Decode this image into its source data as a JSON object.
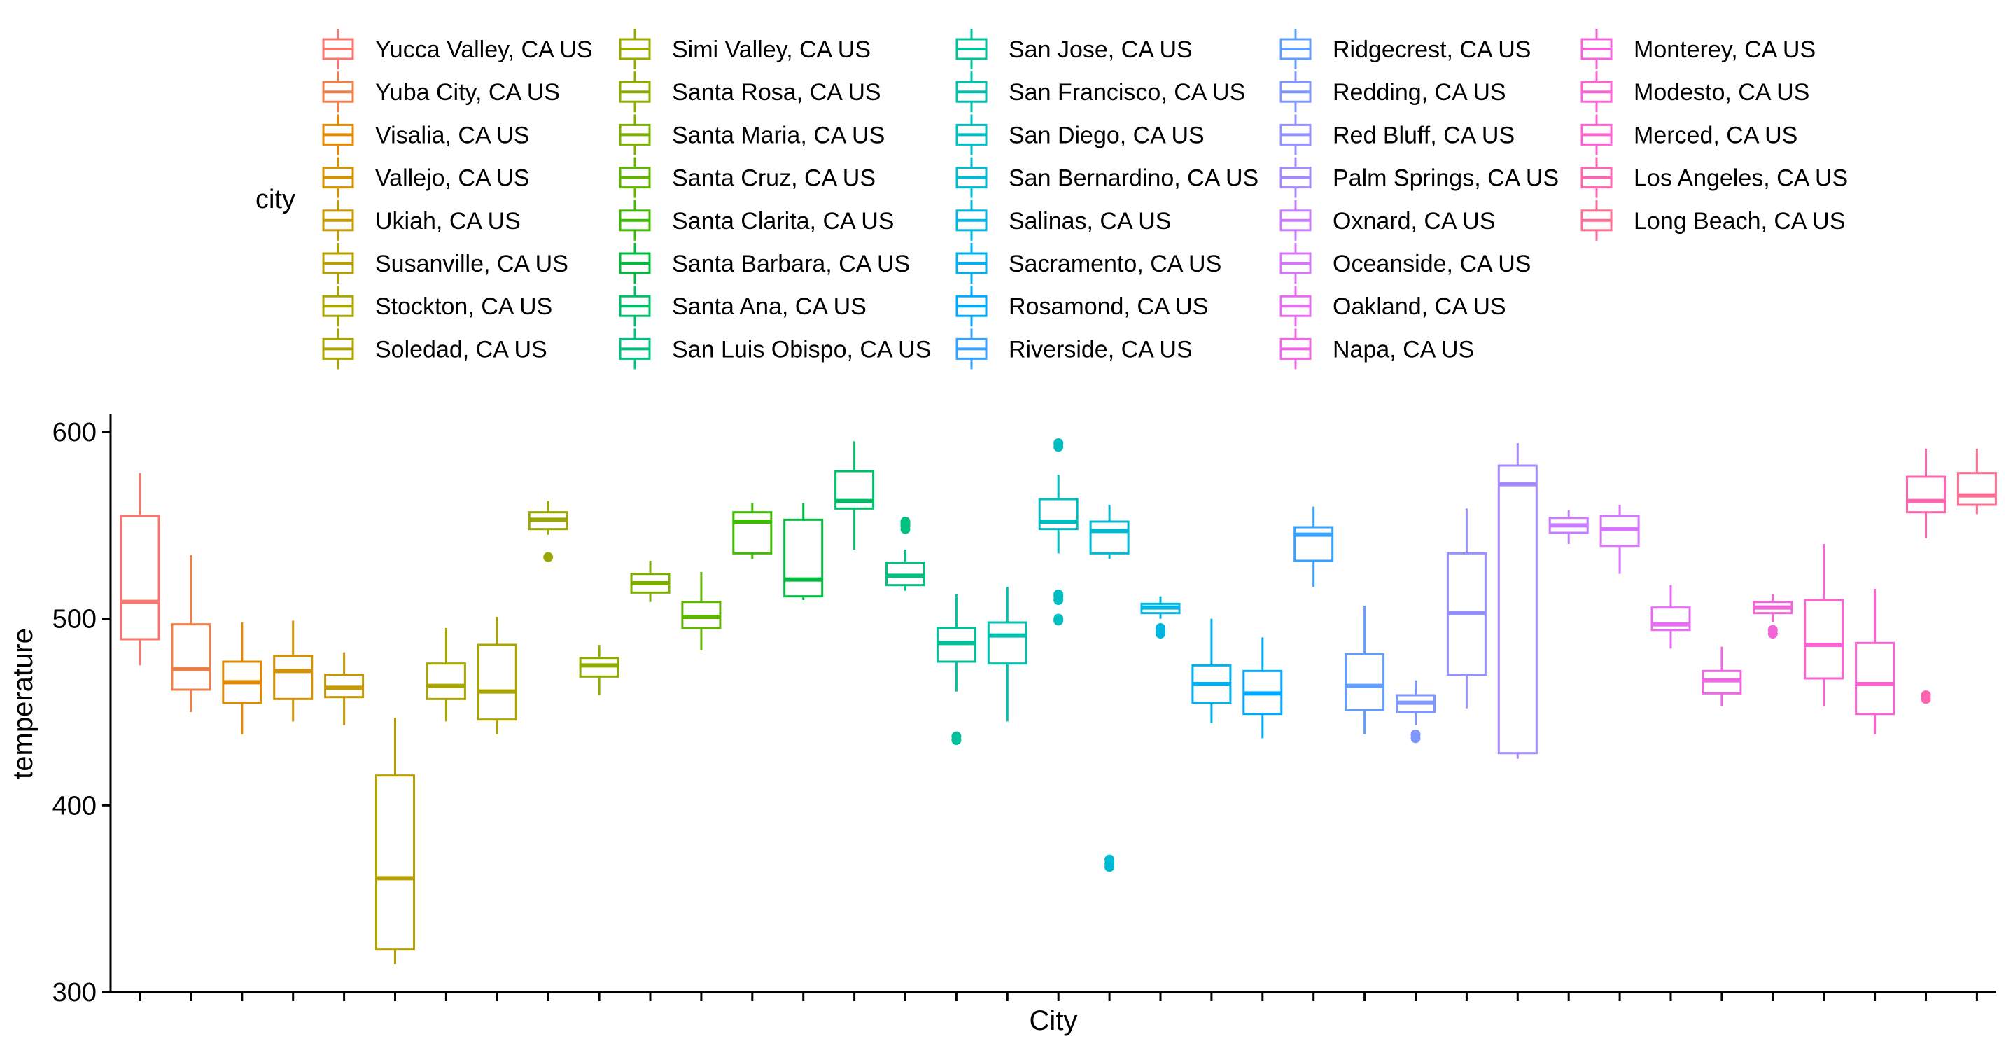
{
  "chart_data": {
    "type": "box",
    "xlabel": "City",
    "ylabel": "temperature",
    "ylim": [
      300,
      610
    ],
    "yticks": [
      300,
      400,
      500,
      600
    ],
    "legend_title": "city",
    "legend_position": "top",
    "grid": false,
    "series": [
      {
        "name": "Yucca Valley, CA US",
        "color": "#F8766D",
        "whisker_low": 475,
        "q1": 489,
        "median": 509,
        "q3": 555,
        "whisker_high": 578,
        "outliers": []
      },
      {
        "name": "Yuba City, CA US",
        "color": "#EF7F49",
        "whisker_low": 450,
        "q1": 462,
        "median": 473,
        "q3": 497,
        "whisker_high": 534,
        "outliers": []
      },
      {
        "name": "Visalia, CA US",
        "color": "#E38900",
        "whisker_low": 438,
        "q1": 455,
        "median": 466,
        "q3": 477,
        "whisker_high": 498,
        "outliers": []
      },
      {
        "name": "Vallejo, CA US",
        "color": "#D59100",
        "whisker_low": 445,
        "q1": 457,
        "median": 472,
        "q3": 480,
        "whisker_high": 499,
        "outliers": []
      },
      {
        "name": "Ukiah, CA US",
        "color": "#C59900",
        "whisker_low": 443,
        "q1": 458,
        "median": 463,
        "q3": 470,
        "whisker_high": 482,
        "outliers": []
      },
      {
        "name": "Susanville, CA US",
        "color": "#B79F00",
        "whisker_low": 315,
        "q1": 323,
        "median": 361,
        "q3": 416,
        "whisker_high": 447,
        "outliers": []
      },
      {
        "name": "Stockton, CA US",
        "color": "#A8A400",
        "whisker_low": 445,
        "q1": 457,
        "median": 464,
        "q3": 476,
        "whisker_high": 495,
        "outliers": []
      },
      {
        "name": "Soledad, CA US",
        "color": "#ABA300",
        "whisker_low": 438,
        "q1": 446,
        "median": 461,
        "q3": 486,
        "whisker_high": 501,
        "outliers": []
      },
      {
        "name": "Simi Valley, CA US",
        "color": "#9BA800",
        "whisker_low": 545,
        "q1": 548,
        "median": 553,
        "q3": 557,
        "whisker_high": 563,
        "outliers": [
          533
        ]
      },
      {
        "name": "Santa Rosa, CA US",
        "color": "#8BAD00",
        "whisker_low": 459,
        "q1": 469,
        "median": 475,
        "q3": 479,
        "whisker_high": 486,
        "outliers": []
      },
      {
        "name": "Santa Maria, CA US",
        "color": "#7CAE00",
        "whisker_low": 509,
        "q1": 514,
        "median": 519,
        "q3": 524,
        "whisker_high": 531,
        "outliers": []
      },
      {
        "name": "Santa Cruz, CA US",
        "color": "#5FB600",
        "whisker_low": 483,
        "q1": 495,
        "median": 501,
        "q3": 509,
        "whisker_high": 525,
        "outliers": []
      },
      {
        "name": "Santa Clarita, CA US",
        "color": "#3EBB00",
        "whisker_low": 532,
        "q1": 535,
        "median": 552,
        "q3": 557,
        "whisker_high": 562,
        "outliers": []
      },
      {
        "name": "Santa Barbara, CA US",
        "color": "#00BB3E",
        "whisker_low": 510,
        "q1": 512,
        "median": 521,
        "q3": 553,
        "whisker_high": 562,
        "outliers": []
      },
      {
        "name": "Santa Ana, CA US",
        "color": "#00BE67",
        "whisker_low": 537,
        "q1": 559,
        "median": 563,
        "q3": 579,
        "whisker_high": 595,
        "outliers": []
      },
      {
        "name": "San Luis Obispo, CA US",
        "color": "#00C082",
        "whisker_low": 515,
        "q1": 518,
        "median": 523,
        "q3": 530,
        "whisker_high": 537,
        "outliers": [
          548,
          550,
          551,
          552
        ]
      },
      {
        "name": "San Jose, CA US",
        "color": "#00C19A",
        "whisker_low": 461,
        "q1": 477,
        "median": 487,
        "q3": 495,
        "whisker_high": 513,
        "outliers": [
          435,
          437
        ]
      },
      {
        "name": "San Francisco, CA US",
        "color": "#00C0AF",
        "whisker_low": 445,
        "q1": 476,
        "median": 491,
        "q3": 498,
        "whisker_high": 517,
        "outliers": []
      },
      {
        "name": "San Diego, CA US",
        "color": "#00BDC2",
        "whisker_low": 535,
        "q1": 548,
        "median": 552,
        "q3": 564,
        "whisker_high": 577,
        "outliers": [
          499,
          500,
          510,
          512,
          513,
          592,
          594
        ]
      },
      {
        "name": "San Bernardino, CA US",
        "color": "#00BAD3",
        "whisker_low": 532,
        "q1": 535,
        "median": 547,
        "q3": 552,
        "whisker_high": 561,
        "outliers": [
          367,
          369,
          371
        ]
      },
      {
        "name": "Salinas, CA US",
        "color": "#00B5E2",
        "whisker_low": 500,
        "q1": 503,
        "median": 506,
        "q3": 508,
        "whisker_high": 512,
        "outliers": [
          492,
          493,
          495
        ]
      },
      {
        "name": "Sacramento, CA US",
        "color": "#00B0F0",
        "whisker_low": 444,
        "q1": 455,
        "median": 465,
        "q3": 475,
        "whisker_high": 500,
        "outliers": []
      },
      {
        "name": "Rosamond, CA US",
        "color": "#00A9FF",
        "whisker_low": 436,
        "q1": 449,
        "median": 460,
        "q3": 472,
        "whisker_high": 490,
        "outliers": []
      },
      {
        "name": "Riverside, CA US",
        "color": "#35A2FF",
        "whisker_low": 517,
        "q1": 531,
        "median": 545,
        "q3": 549,
        "whisker_high": 560,
        "outliers": []
      },
      {
        "name": "Ridgecrest, CA US",
        "color": "#619CFF",
        "whisker_low": 438,
        "q1": 451,
        "median": 464,
        "q3": 481,
        "whisker_high": 507,
        "outliers": []
      },
      {
        "name": "Redding, CA US",
        "color": "#7F96FF",
        "whisker_low": 443,
        "q1": 450,
        "median": 455,
        "q3": 459,
        "whisker_high": 467,
        "outliers": [
          436,
          438
        ]
      },
      {
        "name": "Red Bluff, CA US",
        "color": "#9590FF",
        "whisker_low": 452,
        "q1": 470,
        "median": 503,
        "q3": 535,
        "whisker_high": 559,
        "outliers": []
      },
      {
        "name": "Palm Springs, CA US",
        "color": "#A58AFF",
        "whisker_low": 425,
        "q1": 428,
        "median": 572,
        "q3": 582,
        "whisker_high": 594,
        "outliers": []
      },
      {
        "name": "Oxnard, CA US",
        "color": "#C77CFF",
        "whisker_low": 540,
        "q1": 546,
        "median": 550,
        "q3": 554,
        "whisker_high": 558,
        "outliers": []
      },
      {
        "name": "Oceanside, CA US",
        "color": "#D875FF",
        "whisker_low": 524,
        "q1": 539,
        "median": 548,
        "q3": 555,
        "whisker_high": 561,
        "outliers": []
      },
      {
        "name": "Oakland, CA US",
        "color": "#E76BF3",
        "whisker_low": 484,
        "q1": 494,
        "median": 497,
        "q3": 506,
        "whisker_high": 518,
        "outliers": []
      },
      {
        "name": "Napa, CA US",
        "color": "#F066E5",
        "whisker_low": 453,
        "q1": 460,
        "median": 467,
        "q3": 472,
        "whisker_high": 485,
        "outliers": []
      },
      {
        "name": "Monterey, CA US",
        "color": "#F364D8",
        "whisker_low": 498,
        "q1": 503,
        "median": 506,
        "q3": 509,
        "whisker_high": 513,
        "outliers": [
          492,
          494
        ]
      },
      {
        "name": "Modesto, CA US",
        "color": "#FA62D5",
        "whisker_low": 453,
        "q1": 468,
        "median": 486,
        "q3": 510,
        "whisker_high": 540,
        "outliers": []
      },
      {
        "name": "Merced, CA US",
        "color": "#FD61D1",
        "whisker_low": 438,
        "q1": 449,
        "median": 465,
        "q3": 487,
        "whisker_high": 516,
        "outliers": []
      },
      {
        "name": "Los Angeles, CA US",
        "color": "#FF64B0",
        "whisker_low": 543,
        "q1": 557,
        "median": 563,
        "q3": 576,
        "whisker_high": 591,
        "outliers": [
          457,
          459
        ]
      },
      {
        "name": "Long Beach, CA US",
        "color": "#FF6C91",
        "whisker_low": 556,
        "q1": 561,
        "median": 566,
        "q3": 578,
        "whisker_high": 591,
        "outliers": []
      }
    ]
  }
}
